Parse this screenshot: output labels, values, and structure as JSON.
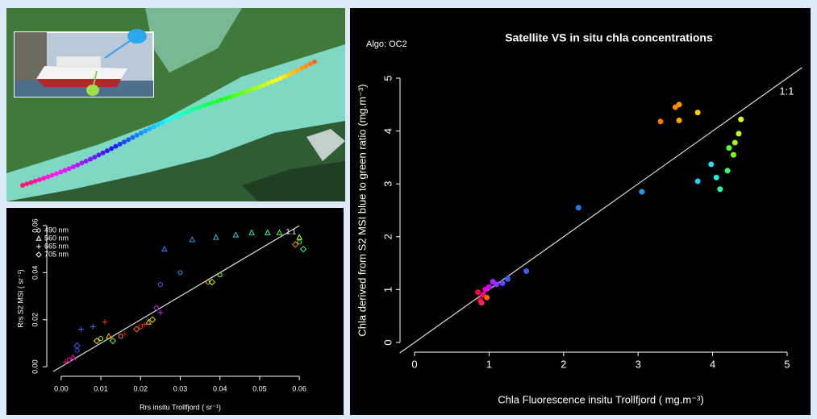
{
  "chart_data": [
    {
      "type": "scatter",
      "title": "Satellite VS in situ chla concentrations",
      "annotation": "Algo: OC2",
      "line_label": "1:1",
      "x_label": "Chla Fluorescence insitu Trollfjord ( mg.m⁻³)",
      "y_label": "Chla derived from S2 MSI blue to green ratio (mg.m⁻³)",
      "xlim": [
        0,
        5
      ],
      "ylim": [
        0,
        5
      ],
      "xticks": [
        0,
        1,
        2,
        3,
        4,
        5
      ],
      "yticks": [
        0,
        1,
        2,
        3,
        4,
        5
      ],
      "series": [
        {
          "x": [
            0.85,
            0.88,
            0.9,
            0.92,
            0.95,
            0.97,
            1.0,
            1.05,
            1.1,
            1.18,
            1.25,
            1.5,
            2.2,
            3.05,
            3.3,
            3.5,
            3.55,
            3.55,
            3.8,
            3.8,
            3.98,
            4.05,
            4.1,
            4.2,
            4.22,
            4.28,
            4.3,
            4.35,
            4.38
          ],
          "values": [
            0.95,
            0.8,
            0.75,
            0.9,
            1.0,
            0.85,
            1.05,
            1.15,
            1.1,
            1.12,
            1.2,
            1.35,
            2.55,
            2.85,
            4.18,
            4.45,
            4.5,
            4.2,
            4.35,
            3.05,
            3.37,
            3.12,
            2.9,
            3.25,
            3.68,
            3.55,
            3.78,
            3.95,
            4.22
          ],
          "colors": [
            "#ff0044",
            "#ff0022",
            "#ff2266",
            "#ff0088",
            "#ee00cc",
            "#ff6600",
            "#cc00ff",
            "#aa22ff",
            "#8833ff",
            "#6644ff",
            "#4455ff",
            "#3366ff",
            "#2277ee",
            "#2299ee",
            "#ff7700",
            "#ff8800",
            "#ff9900",
            "#ffaa00",
            "#ffcc00",
            "#22ccff",
            "#22ddff",
            "#22eedd",
            "#22ffaa",
            "#33ff66",
            "#55ff33",
            "#77ff22",
            "#99ff22",
            "#bbff22",
            "#ddff22"
          ]
        }
      ]
    },
    {
      "type": "scatter",
      "line_label": "1:1",
      "x_label": "Rrs insitu Trollfjord ( sr⁻¹)",
      "y_label": "Rrs S2 MSI ( sr⁻¹)",
      "xlim": [
        -0.002,
        0.062
      ],
      "ylim": [
        -0.002,
        0.06
      ],
      "xticks": [
        {
          "value": 0,
          "label": "0.00"
        },
        0.01,
        0.02,
        0.03,
        0.04,
        0.05,
        0.06
      ],
      "yticks": [
        {
          "value": 0,
          "label": "0.00"
        },
        0.02,
        0.04,
        0.06
      ],
      "legend": "top-left",
      "series": [
        {
          "name": "490 nm",
          "marker": "circle",
          "x": [
            0.002,
            0.004,
            0.01,
            0.015,
            0.02,
            0.024,
            0.025,
            0.03,
            0.037,
            0.04,
            0.06
          ],
          "values": [
            0.003,
            0.007,
            0.012,
            0.013,
            0.017,
            0.025,
            0.035,
            0.04,
            0.036,
            0.039,
            0.053
          ],
          "colors": [
            "#ff00cc",
            "#3355ff",
            "#99ff22",
            "#ff8800",
            "#ff3300",
            "#aa22ff",
            "#4466ff",
            "#3399ff",
            "#ffcc00",
            "#99ff22",
            "#22ff66"
          ]
        },
        {
          "name": "560 nm",
          "marker": "triangle",
          "x": [
            0.003,
            0.012,
            0.022,
            0.026,
            0.033,
            0.039,
            0.044,
            0.048,
            0.052,
            0.055,
            0.06
          ],
          "values": [
            0.004,
            0.013,
            0.019,
            0.05,
            0.054,
            0.055,
            0.056,
            0.057,
            0.057,
            0.057,
            0.055
          ],
          "colors": [
            "#ff00aa",
            "#ffaa00",
            "#ffdd00",
            "#3388ff",
            "#2299ee",
            "#22bbdd",
            "#22ddcc",
            "#22eebb",
            "#33ff99",
            "#55ff44",
            "#ddff22"
          ]
        },
        {
          "name": "665 nm",
          "marker": "plus",
          "x": [
            0.001,
            0.005,
            0.008,
            0.011,
            0.016,
            0.021,
            0.025
          ],
          "values": [
            0.002,
            0.016,
            0.017,
            0.019,
            0.014,
            0.018,
            0.023
          ],
          "colors": [
            "#ff0044",
            "#2266ff",
            "#3377ff",
            "#ff3300",
            "#cc0000",
            "#ff2200",
            "#bb22ff"
          ]
        },
        {
          "name": "705 nm",
          "marker": "diamond",
          "x": [
            0.004,
            0.009,
            0.013,
            0.019,
            0.023,
            0.038,
            0.059,
            0.061
          ],
          "values": [
            0.009,
            0.011,
            0.011,
            0.016,
            0.02,
            0.036,
            0.052,
            0.05
          ],
          "colors": [
            "#4455ff",
            "#ffee00",
            "#66ff33",
            "#ff6600",
            "#ffcc00",
            "#ccff22",
            "#ff8800",
            "#33ff77"
          ]
        }
      ]
    }
  ]
}
